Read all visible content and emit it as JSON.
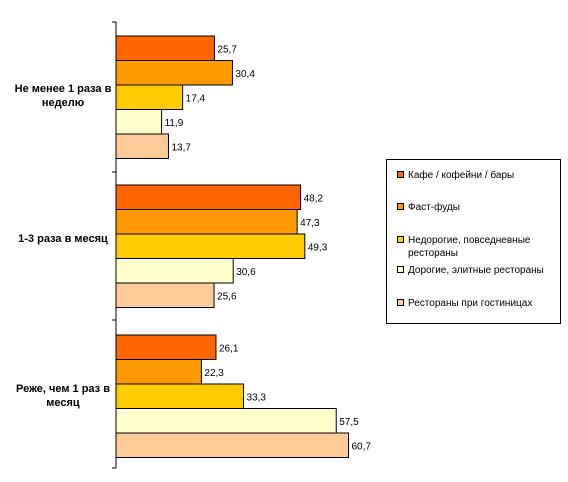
{
  "chart_data": {
    "type": "bar",
    "orientation": "horizontal",
    "categories": [
      "Не менее 1 раза в неделю",
      "1-3 раза в месяц",
      "Реже, чем 1 раз в месяц"
    ],
    "series": [
      {
        "name": "Кафе / кофейни / бары",
        "color": "#ff6600",
        "values": [
          25.7,
          48.2,
          26.1
        ]
      },
      {
        "name": "Фаст-фуды",
        "color": "#ff9900",
        "values": [
          30.4,
          47.3,
          22.3
        ]
      },
      {
        "name": "Недорогие, повседневные рестораны",
        "color": "#ffcc00",
        "values": [
          17.4,
          49.3,
          33.3
        ]
      },
      {
        "name": "Дорогие, элитные рестораны",
        "color": "#ffffcc",
        "values": [
          11.9,
          30.6,
          57.5
        ]
      },
      {
        "name": "Рестораны при гостиницах",
        "color": "#ffcc99",
        "values": [
          13.7,
          25.6,
          60.7
        ]
      }
    ],
    "value_labels": [
      [
        "25,7",
        "48,2",
        "26,1"
      ],
      [
        "30,4",
        "47,3",
        "22,3"
      ],
      [
        "17,4",
        "49,3",
        "33,3"
      ],
      [
        "11,9",
        "30,6",
        "57,5"
      ],
      [
        "13,7",
        "25,6",
        "60,7"
      ]
    ],
    "xlim": [
      0,
      100
    ],
    "grid": false,
    "legend_position": "right"
  },
  "labels": {
    "cat0": "Не менее 1 раза в неделю",
    "cat1": "1-3 раза в месяц",
    "cat2": "Реже, чем 1 раз в месяц"
  },
  "legend": [
    "Кафе / кофейни / бары",
    "Фаст-фуды",
    "Недорогие, повседневные рестораны",
    "Дорогие, элитные рестораны",
    "Рестораны при гостиницах"
  ]
}
